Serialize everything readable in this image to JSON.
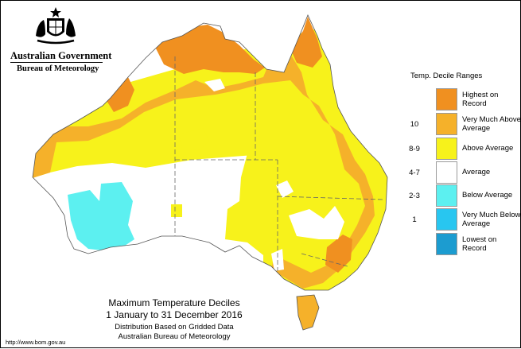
{
  "header": {
    "gov_name": "Australian Government",
    "bureau": "Bureau of Meteorology",
    "crest": "coat-of-arms-icon"
  },
  "legend": {
    "title": "Temp. Decile Ranges",
    "items": [
      {
        "range": "",
        "label": "Highest on Record",
        "color": "#f09020"
      },
      {
        "range": "10",
        "label": "Very Much Above Average",
        "color": "#f5b12a"
      },
      {
        "range": "8-9",
        "label": "Above Average",
        "color": "#f7f21b"
      },
      {
        "range": "4-7",
        "label": "Average",
        "color": "#ffffff"
      },
      {
        "range": "2-3",
        "label": "Below Average",
        "color": "#5cf0f0"
      },
      {
        "range": "1",
        "label": "Very Much Below Average",
        "color": "#28c6f0"
      },
      {
        "range": "",
        "label": "Lowest on Record",
        "color": "#1c9cd0"
      }
    ]
  },
  "caption": {
    "title": "Maximum Temperature Deciles",
    "dates": "1 January to 31 December 2016",
    "sub1": "Distribution Based on Gridded Data",
    "sub2": "Australian Bureau of Meteorology"
  },
  "url": "http://www.bom.gov.au"
}
